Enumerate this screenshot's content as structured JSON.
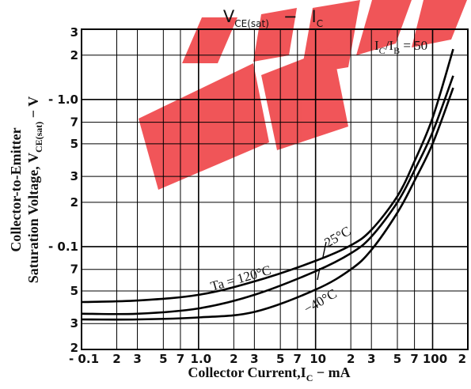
{
  "chart_data": {
    "type": "line",
    "title": "VCE(sat) − IC",
    "title_parts": {
      "main": "V",
      "sub": "CE(sat)",
      "dash": "−",
      "main2": "I",
      "sub2": "C"
    },
    "xlabel": "Collector Current,IC − mA",
    "xlabel_parts": {
      "pre": "Collector Current,I",
      "sub": "C",
      "post": " − mA"
    },
    "ylabel": "Collector-to-Emitter Saturation Voltage, VCE(sat) − V",
    "ylabel_parts": {
      "line1": "Collector-to-Emitter",
      "line2_pre": "Saturation Voltage, V",
      "line2_sub": "CE(sat)",
      "line2_post": " − V"
    },
    "x_scale": "log",
    "y_scale": "log",
    "xlim": [
      0.1,
      200
    ],
    "ylim": [
      0.02,
      3
    ],
    "grid": true,
    "x_tick_labels": [
      {
        "v": 0.1,
        "t": "0.1"
      },
      {
        "v": 0.2,
        "t": "2"
      },
      {
        "v": 0.3,
        "t": "3"
      },
      {
        "v": 0.5,
        "t": "5"
      },
      {
        "v": 0.7,
        "t": "7"
      },
      {
        "v": 1,
        "t": "1.0"
      },
      {
        "v": 2,
        "t": "2"
      },
      {
        "v": 3,
        "t": "3"
      },
      {
        "v": 5,
        "t": "5"
      },
      {
        "v": 7,
        "t": "7"
      },
      {
        "v": 10,
        "t": "10"
      },
      {
        "v": 20,
        "t": "2"
      },
      {
        "v": 30,
        "t": "3"
      },
      {
        "v": 50,
        "t": "5"
      },
      {
        "v": 70,
        "t": "7"
      },
      {
        "v": 100,
        "t": "100"
      },
      {
        "v": 200,
        "t": "2"
      }
    ],
    "y_tick_labels": [
      {
        "v": 3,
        "t": "3"
      },
      {
        "v": 2,
        "t": "2"
      },
      {
        "v": 1,
        "t": "1.0"
      },
      {
        "v": 0.7,
        "t": "7"
      },
      {
        "v": 0.5,
        "t": "5"
      },
      {
        "v": 0.3,
        "t": "3"
      },
      {
        "v": 0.2,
        "t": "2"
      },
      {
        "v": 0.1,
        "t": "0.1"
      },
      {
        "v": 0.07,
        "t": "7"
      },
      {
        "v": 0.05,
        "t": "5"
      },
      {
        "v": 0.03,
        "t": "3"
      },
      {
        "v": 0.02,
        "t": "2"
      }
    ],
    "condition_label": {
      "pre": "I",
      "sub1": "C",
      "mid": "/I",
      "sub2": "B",
      "post": " = 50"
    },
    "series": [
      {
        "name": "Ta = 120°C",
        "x": [
          0.1,
          0.3,
          1,
          3,
          10,
          20,
          30,
          50,
          70,
          100,
          150
        ],
        "y": [
          0.042,
          0.043,
          0.047,
          0.058,
          0.08,
          0.102,
          0.13,
          0.22,
          0.38,
          0.75,
          2.2
        ]
      },
      {
        "name": "25°C",
        "x": [
          0.1,
          0.3,
          1,
          3,
          10,
          20,
          30,
          50,
          70,
          100,
          150
        ],
        "y": [
          0.035,
          0.035,
          0.038,
          0.047,
          0.068,
          0.09,
          0.117,
          0.2,
          0.33,
          0.6,
          1.45
        ]
      },
      {
        "name": "−40°C",
        "x": [
          0.1,
          0.3,
          1,
          3,
          10,
          20,
          30,
          50,
          70,
          100,
          150
        ],
        "y": [
          0.032,
          0.032,
          0.033,
          0.036,
          0.051,
          0.07,
          0.095,
          0.17,
          0.28,
          0.5,
          1.2
        ]
      }
    ],
    "watermark_color": "#ef3e42"
  }
}
